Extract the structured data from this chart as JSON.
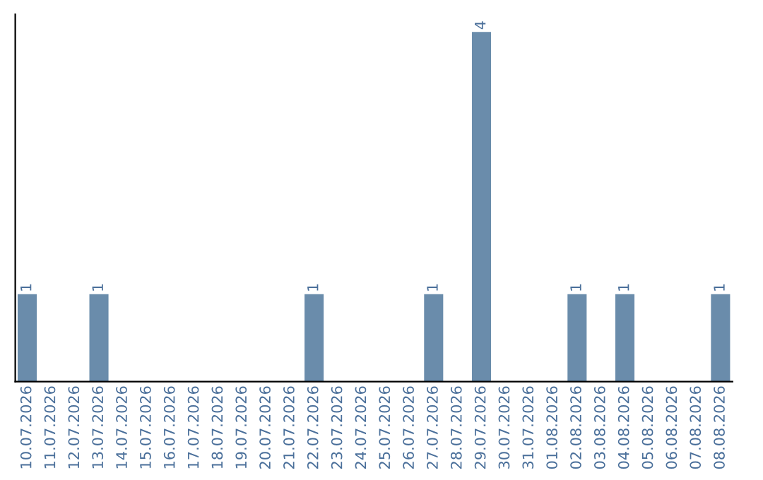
{
  "chart_data": {
    "type": "bar",
    "categories": [
      "10.07.2026",
      "11.07.2026",
      "12.07.2026",
      "13.07.2026",
      "14.07.2026",
      "15.07.2026",
      "16.07.2026",
      "17.07.2026",
      "18.07.2026",
      "19.07.2026",
      "20.07.2026",
      "21.07.2026",
      "22.07.2026",
      "23.07.2026",
      "24.07.2026",
      "25.07.2026",
      "26.07.2026",
      "27.07.2026",
      "28.07.2026",
      "29.07.2026",
      "30.07.2026",
      "31.07.2026",
      "01.08.2026",
      "02.08.2026",
      "03.08.2026",
      "04.08.2026",
      "05.08.2026",
      "06.08.2026",
      "07.08.2026",
      "08.08.2026"
    ],
    "values": [
      1,
      0,
      0,
      1,
      0,
      0,
      0,
      0,
      0,
      0,
      0,
      0,
      1,
      0,
      0,
      0,
      0,
      1,
      0,
      4,
      0,
      0,
      0,
      1,
      0,
      1,
      0,
      0,
      0,
      1
    ],
    "value_labels": [
      "1",
      null,
      null,
      "1",
      null,
      null,
      null,
      null,
      null,
      null,
      null,
      null,
      "1",
      null,
      null,
      null,
      null,
      "1",
      null,
      "4",
      null,
      null,
      null,
      "1",
      null,
      "1",
      null,
      null,
      null,
      "1"
    ],
    "color": "#6a8cab",
    "tick_labels": "x",
    "grid": false,
    "legend": false
  }
}
